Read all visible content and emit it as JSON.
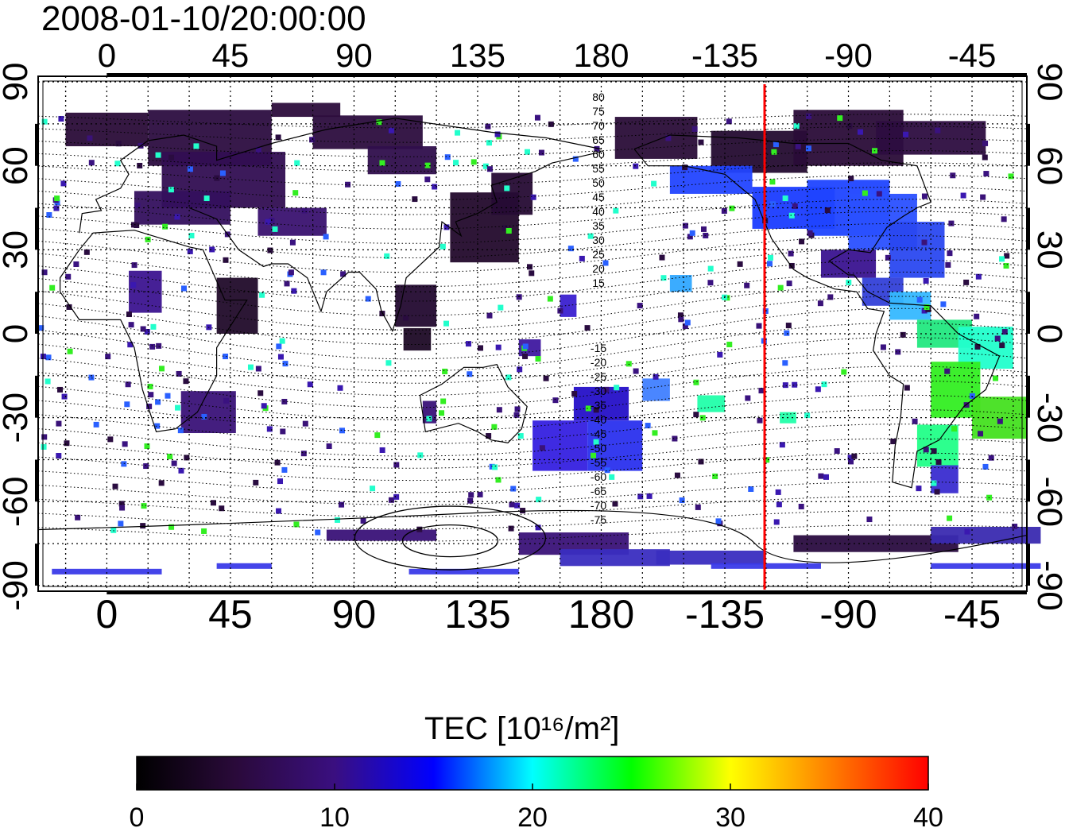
{
  "title": "2008-01-10/20:00:00",
  "map": {
    "projection": "equirectangular",
    "longitude_labels_top": [
      "0",
      "45",
      "90",
      "135",
      "180",
      "-135",
      "-90",
      "-45"
    ],
    "longitude_labels_bottom": [
      "0",
      "45",
      "90",
      "135",
      "180",
      "-135",
      "-90",
      "-45"
    ],
    "latitude_labels_left": [
      "90",
      "60",
      "30",
      "0",
      "-30",
      "-60",
      "-90"
    ],
    "latitude_labels_right": [
      "90",
      "60",
      "30",
      "0",
      "-30",
      "-60",
      "-90"
    ],
    "magnetic_latitude_labels_north": [
      "80",
      "75",
      "70",
      "65",
      "60",
      "55",
      "50",
      "45",
      "40",
      "35",
      "30",
      "25",
      "20",
      "15"
    ],
    "magnetic_latitude_labels_south": [
      "-15",
      "-20",
      "-25",
      "-30",
      "-35",
      "-40",
      "-45",
      "-50",
      "-55",
      "-60",
      "-65",
      "-70",
      "-75"
    ],
    "grid": true,
    "meridian_line": {
      "color": "#ff0000"
    }
  },
  "colorbar": {
    "title": "TEC",
    "unit": "[10¹⁶/m²]",
    "min": 0,
    "max": 40,
    "tick_labels": [
      "0",
      "10",
      "20",
      "30",
      "40"
    ],
    "colors": [
      "#000000",
      "#2a0a3a",
      "#3a0f80",
      "#0000ff",
      "#00ffff",
      "#00ff00",
      "#ffff00",
      "#ff8000",
      "#ff0000"
    ]
  }
}
